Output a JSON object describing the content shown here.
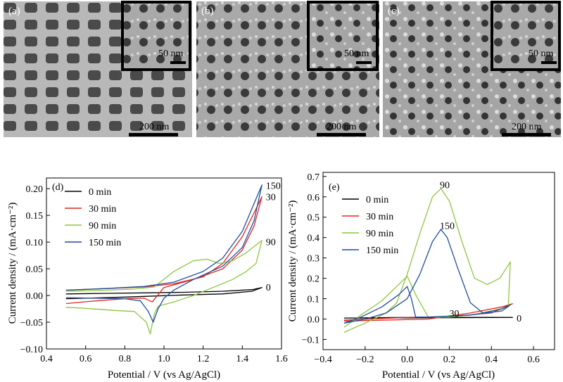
{
  "micrographs": [
    {
      "label": "(a)",
      "scale_main": "200 nm",
      "scale_inset": "50 nm"
    },
    {
      "label": "(b)",
      "scale_main": "200 nm",
      "scale_inset": "50 nm"
    },
    {
      "label": "(c)",
      "scale_main": "200 nm",
      "scale_inset": "50 nm"
    }
  ],
  "colors": {
    "0 min": "#000000",
    "30 min": "#e0261f",
    "90 min": "#8cc63f",
    "150 min": "#1f4e9e"
  },
  "chart_data": [
    {
      "type": "line",
      "panel_label": "(d)",
      "xlabel": "Potential / V (vs Ag/AgCl)",
      "ylabel": "Current density / (mA·cm⁻²)",
      "xlim": [
        0.4,
        1.6
      ],
      "ylim": [
        -0.1,
        0.22
      ],
      "xticks": [
        "0.4",
        "0.6",
        "0.8",
        "1.0",
        "1.2",
        "1.4",
        "1.6"
      ],
      "yticks": [
        "−0.10",
        "−0.05",
        "0.00",
        "0.05",
        "0.10",
        "0.15",
        "0.20"
      ],
      "legend": [
        "0 min",
        "30 min",
        "90 min",
        "150 min"
      ],
      "curve_labels": [
        {
          "text": "150",
          "x": 1.52,
          "y": 0.206
        },
        {
          "text": "30",
          "x": 1.52,
          "y": 0.185
        },
        {
          "text": "90",
          "x": 1.52,
          "y": 0.101
        },
        {
          "text": "0",
          "x": 1.52,
          "y": 0.016
        }
      ],
      "series": [
        {
          "name": "0 min",
          "points": [
            [
              0.5,
              0.003
            ],
            [
              0.7,
              0.004
            ],
            [
              0.9,
              0.005
            ],
            [
              1.1,
              0.006
            ],
            [
              1.3,
              0.008
            ],
            [
              1.45,
              0.011
            ],
            [
              1.5,
              0.015
            ],
            [
              1.45,
              0.008
            ],
            [
              1.3,
              0.003
            ],
            [
              1.1,
              0.001
            ],
            [
              0.95,
              -0.001
            ],
            [
              0.8,
              -0.003
            ],
            [
              0.6,
              -0.005
            ],
            [
              0.5,
              -0.006
            ]
          ]
        },
        {
          "name": "30 min",
          "points": [
            [
              0.5,
              0.01
            ],
            [
              0.7,
              0.013
            ],
            [
              0.9,
              0.016
            ],
            [
              1.05,
              0.022
            ],
            [
              1.2,
              0.035
            ],
            [
              1.3,
              0.06
            ],
            [
              1.4,
              0.11
            ],
            [
              1.5,
              0.185
            ],
            [
              1.46,
              0.13
            ],
            [
              1.4,
              0.085
            ],
            [
              1.3,
              0.05
            ],
            [
              1.15,
              0.03
            ],
            [
              1.0,
              0.015
            ],
            [
              0.96,
              -0.003
            ],
            [
              0.94,
              -0.012
            ],
            [
              0.9,
              -0.005
            ],
            [
              0.8,
              -0.006
            ],
            [
              0.65,
              -0.01
            ],
            [
              0.5,
              -0.015
            ]
          ]
        },
        {
          "name": "90 min",
          "points": [
            [
              0.5,
              0.008
            ],
            [
              0.7,
              0.01
            ],
            [
              0.85,
              0.012
            ],
            [
              0.95,
              0.016
            ],
            [
              1.05,
              0.045
            ],
            [
              1.15,
              0.065
            ],
            [
              1.22,
              0.068
            ],
            [
              1.28,
              0.06
            ],
            [
              1.35,
              0.065
            ],
            [
              1.42,
              0.08
            ],
            [
              1.5,
              0.103
            ],
            [
              1.47,
              0.06
            ],
            [
              1.42,
              0.045
            ],
            [
              1.35,
              0.03
            ],
            [
              1.25,
              0.015
            ],
            [
              1.15,
              0.0
            ],
            [
              1.05,
              -0.012
            ],
            [
              0.97,
              -0.02
            ],
            [
              0.95,
              -0.035
            ],
            [
              0.93,
              -0.072
            ],
            [
              0.91,
              -0.05
            ],
            [
              0.85,
              -0.03
            ],
            [
              0.75,
              -0.028
            ],
            [
              0.6,
              -0.024
            ],
            [
              0.5,
              -0.022
            ]
          ]
        },
        {
          "name": "150 min",
          "points": [
            [
              0.5,
              0.01
            ],
            [
              0.7,
              0.013
            ],
            [
              0.9,
              0.017
            ],
            [
              1.05,
              0.025
            ],
            [
              1.2,
              0.045
            ],
            [
              1.3,
              0.07
            ],
            [
              1.4,
              0.12
            ],
            [
              1.5,
              0.207
            ],
            [
              1.46,
              0.14
            ],
            [
              1.4,
              0.09
            ],
            [
              1.3,
              0.055
            ],
            [
              1.15,
              0.03
            ],
            [
              1.05,
              0.01
            ],
            [
              1.0,
              -0.005
            ],
            [
              0.97,
              -0.025
            ],
            [
              0.945,
              -0.05
            ],
            [
              0.92,
              -0.03
            ],
            [
              0.88,
              -0.01
            ],
            [
              0.8,
              -0.006
            ],
            [
              0.65,
              -0.005
            ],
            [
              0.5,
              -0.004
            ]
          ]
        }
      ]
    },
    {
      "type": "line",
      "panel_label": "(e)",
      "xlabel": "Potential / V (vs Ag/AgCl)",
      "ylabel": "Current density / (mA·cm⁻²)",
      "xlim": [
        -0.4,
        0.7
      ],
      "ylim": [
        -0.15,
        0.72
      ],
      "xticks": [
        "−0.4",
        "−0.2",
        "0.0",
        "0.2",
        "0.4",
        "0.6"
      ],
      "yticks": [
        "−0.1",
        "0.0",
        "0.1",
        "0.2",
        "0.3",
        "0.4",
        "0.5",
        "0.6",
        "0.7"
      ],
      "legend": [
        "0 min",
        "30 min",
        "90 min",
        "150 min"
      ],
      "curve_labels": [
        {
          "text": "90",
          "x": 0.155,
          "y": 0.66
        },
        {
          "text": "150",
          "x": 0.155,
          "y": 0.46
        },
        {
          "text": "30",
          "x": 0.2,
          "y": 0.03
        },
        {
          "text": "0",
          "x": 0.52,
          "y": 0.005
        }
      ],
      "series": [
        {
          "name": "0 min",
          "points": [
            [
              -0.3,
              0.005
            ],
            [
              0.0,
              0.006
            ],
            [
              0.3,
              0.007
            ],
            [
              0.5,
              0.008
            ],
            [
              0.3,
              0.008
            ],
            [
              0.0,
              0.008
            ],
            [
              -0.3,
              0.005
            ]
          ]
        },
        {
          "name": "30 min",
          "points": [
            [
              -0.3,
              -0.01
            ],
            [
              -0.1,
              -0.005
            ],
            [
              0.1,
              0.0
            ],
            [
              0.3,
              0.03
            ],
            [
              0.45,
              0.06
            ],
            [
              0.5,
              0.075
            ],
            [
              0.4,
              0.03
            ],
            [
              0.2,
              0.012
            ],
            [
              0.0,
              0.008
            ],
            [
              -0.3,
              -0.005
            ]
          ]
        },
        {
          "name": "90 min",
          "points": [
            [
              -0.3,
              -0.065
            ],
            [
              -0.2,
              -0.02
            ],
            [
              -0.1,
              0.03
            ],
            [
              -0.05,
              0.08
            ],
            [
              0.0,
              0.22
            ],
            [
              0.06,
              0.42
            ],
            [
              0.12,
              0.6
            ],
            [
              0.16,
              0.64
            ],
            [
              0.2,
              0.58
            ],
            [
              0.26,
              0.38
            ],
            [
              0.32,
              0.2
            ],
            [
              0.38,
              0.17
            ],
            [
              0.44,
              0.2
            ],
            [
              0.49,
              0.28
            ],
            [
              0.48,
              0.06
            ],
            [
              0.4,
              0.04
            ],
            [
              0.3,
              0.02
            ],
            [
              0.2,
              0.01
            ],
            [
              0.1,
              0.01
            ],
            [
              0.04,
              0.12
            ],
            [
              0.0,
              0.21
            ],
            [
              -0.04,
              0.17
            ],
            [
              -0.12,
              0.09
            ],
            [
              -0.22,
              0.02
            ],
            [
              -0.3,
              -0.04
            ]
          ]
        },
        {
          "name": "150 min",
          "points": [
            [
              -0.3,
              -0.02
            ],
            [
              -0.2,
              0.0
            ],
            [
              -0.1,
              0.03
            ],
            [
              0.0,
              0.1
            ],
            [
              0.06,
              0.22
            ],
            [
              0.12,
              0.38
            ],
            [
              0.16,
              0.44
            ],
            [
              0.19,
              0.4
            ],
            [
              0.24,
              0.25
            ],
            [
              0.3,
              0.08
            ],
            [
              0.36,
              0.03
            ],
            [
              0.45,
              0.05
            ],
            [
              0.49,
              0.07
            ],
            [
              0.45,
              0.04
            ],
            [
              0.3,
              0.02
            ],
            [
              0.1,
              0.01
            ],
            [
              0.04,
              0.01
            ],
            [
              0.02,
              0.1
            ],
            [
              0.0,
              0.16
            ],
            [
              -0.04,
              0.12
            ],
            [
              -0.12,
              0.06
            ],
            [
              -0.22,
              0.01
            ],
            [
              -0.3,
              -0.02
            ]
          ]
        }
      ]
    }
  ]
}
